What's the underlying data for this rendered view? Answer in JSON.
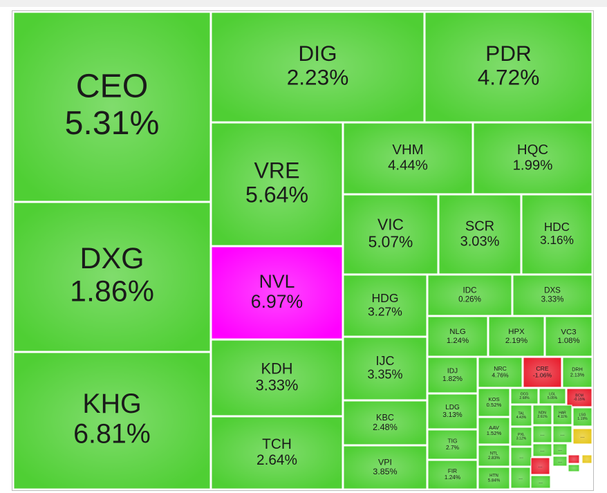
{
  "chart_data": {
    "type": "treemap",
    "categories": [
      "CEO",
      "DXG",
      "KHG",
      "DIG",
      "PDR",
      "VRE",
      "NVL",
      "KDH",
      "TCH",
      "VHM",
      "HQC",
      "VIC",
      "SCR",
      "HDC",
      "HDG",
      "IDC",
      "DXS",
      "IJC",
      "KBC",
      "VPI",
      "NLG",
      "HPX",
      "VC3",
      "IDJ",
      "NRC",
      "CRE",
      "DRH",
      "LDG",
      "TIG",
      "FIR",
      "KOS",
      "OCG",
      "LGL",
      "BCM",
      "AAV",
      "TAL",
      "NDN",
      "HAR",
      "LSG",
      "PXL",
      "NTL",
      "HTN"
    ],
    "values": [
      5.31,
      1.86,
      6.81,
      2.23,
      4.72,
      5.64,
      6.97,
      3.33,
      2.64,
      4.44,
      1.99,
      5.07,
      3.03,
      3.16,
      3.27,
      0.26,
      3.33,
      3.35,
      2.48,
      3.85,
      1.24,
      2.19,
      1.08,
      1.82,
      4.76,
      -1.06,
      2.13,
      3.13,
      2.7,
      1.24,
      0.52,
      2.68,
      5.05,
      -0.15,
      1.52,
      4.43,
      2.61,
      4.11,
      1.19,
      3.12,
      2.83,
      5.84
    ],
    "value_labels": [
      "5.31%",
      "1.86%",
      "6.81%",
      "2.23%",
      "4.72%",
      "5.64%",
      "6.97%",
      "3.33%",
      "2.64%",
      "4.44%",
      "1.99%",
      "5.07%",
      "3.03%",
      "3.16%",
      "3.27%",
      "0.26%",
      "3.33%",
      "3.35%",
      "2.48%",
      "3.85%",
      "1.24%",
      "2.19%",
      "1.08%",
      "1.82%",
      "4.76%",
      "-1.06%",
      "2.13%",
      "3.13%",
      "2.7%",
      "1.24%",
      "0.52%",
      "2.68%",
      "5.05%",
      "-0.15%",
      "1.52%",
      "4.43%",
      "2.61%",
      "4.11%",
      "1.19%",
      "3.12%",
      "2.83%",
      "5.84%"
    ],
    "colors": [
      "#4fcf34",
      "#4fcf34",
      "#4fcf34",
      "#4fcf34",
      "#4fcf34",
      "#4fcf34",
      "#ff00ff",
      "#4fcf34",
      "#4fcf34",
      "#4fcf34",
      "#4fcf34",
      "#4fcf34",
      "#4fcf34",
      "#4fcf34",
      "#4fcf34",
      "#4fcf34",
      "#4fcf34",
      "#4fcf34",
      "#4fcf34",
      "#4fcf34",
      "#4fcf34",
      "#4fcf34",
      "#4fcf34",
      "#4fcf34",
      "#4fcf34",
      "#e8202f",
      "#4fcf34",
      "#4fcf34",
      "#4fcf34",
      "#4fcf34",
      "#4fcf34",
      "#4fcf34",
      "#4fcf34",
      "#e8202f",
      "#4fcf34",
      "#4fcf34",
      "#4fcf34",
      "#4fcf34",
      "#4fcf34",
      "#4fcf34",
      "#4fcf34",
      "#4fcf34"
    ],
    "more_label": "...",
    "more_colors": [
      "#4fcf34",
      "#4fcf34",
      "#e6c619",
      "#4fcf34",
      "#4fcf34",
      "#4fcf34",
      "#4fcf34",
      "#e8202f",
      "#e8202f",
      "#e6c619",
      "#4fcf34",
      "#4fcf34",
      "#4fcf34"
    ]
  }
}
